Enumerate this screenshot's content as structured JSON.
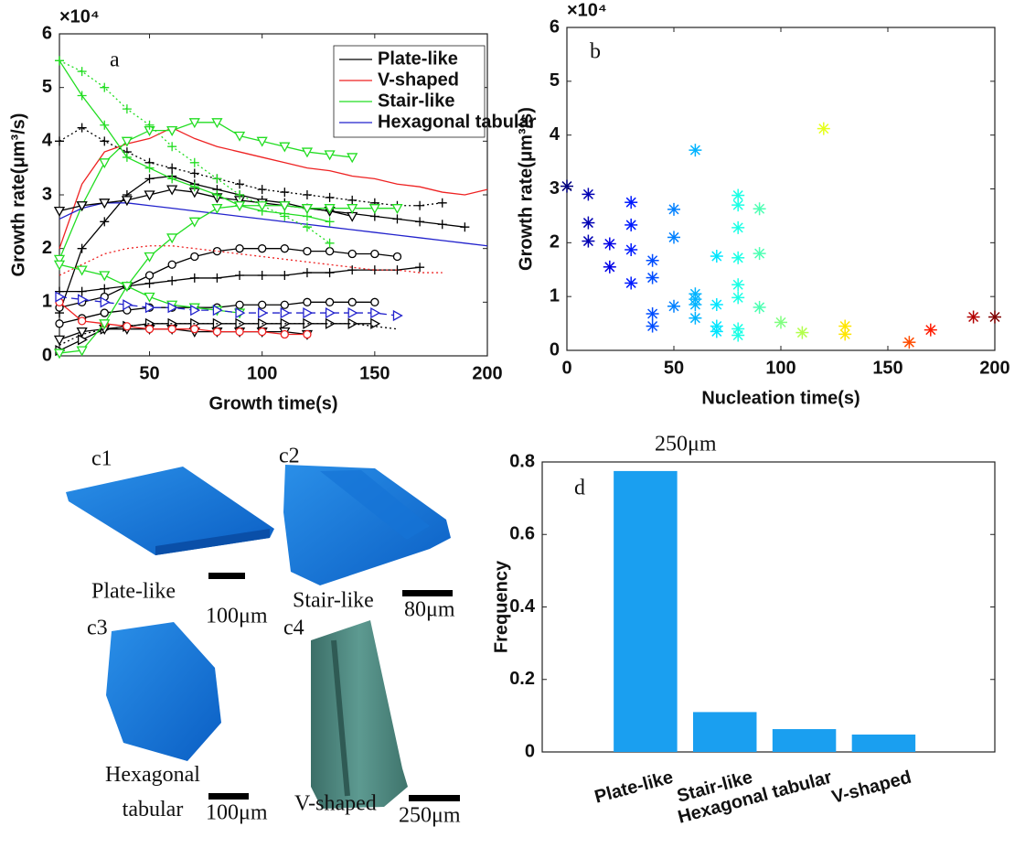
{
  "chart_data": [
    {
      "type": "line",
      "label": "a",
      "y_multiplier": "×10⁴",
      "xlabel": "Growth time(s)",
      "ylabel": "Growth rate(μm³/s)",
      "x": [
        10,
        20,
        30,
        40,
        50,
        60,
        70,
        80,
        90,
        100,
        110,
        120,
        130,
        140,
        150,
        160,
        170,
        180,
        190,
        200
      ],
      "xlim": [
        10,
        200
      ],
      "xticks": [
        50,
        100,
        150,
        200
      ],
      "ylim": [
        0,
        6
      ],
      "yticks": [
        0,
        1,
        2,
        3,
        4,
        5,
        6
      ],
      "legend": "upper-right",
      "series": [
        {
          "name": "Plate-like",
          "color": "#000000",
          "linestyle": "solid",
          "marker": "plus",
          "values": [
            0.8,
            2.0,
            2.5,
            3.0,
            3.3,
            3.35,
            3.2,
            3.1,
            3.0,
            2.9,
            2.85,
            2.75,
            2.7,
            2.65,
            2.6,
            2.55,
            2.5,
            2.45,
            2.4,
            null
          ]
        },
        {
          "name": "V-shaped",
          "color": "#ee2222",
          "linestyle": "solid",
          "marker": "none",
          "values": [
            2.0,
            3.2,
            3.8,
            3.95,
            4.05,
            4.25,
            4.05,
            3.9,
            3.8,
            3.7,
            3.6,
            3.5,
            3.45,
            3.35,
            3.3,
            3.2,
            3.15,
            3.05,
            3.0,
            3.1
          ]
        },
        {
          "name": "Stair-like",
          "color": "#22dd22",
          "linestyle": "solid",
          "marker": "triangle-down",
          "values": [
            1.8,
            2.8,
            3.6,
            4.0,
            4.2,
            4.2,
            4.35,
            4.35,
            4.1,
            4.0,
            3.9,
            3.8,
            3.75,
            3.7,
            null,
            null,
            null,
            null,
            null,
            null
          ]
        },
        {
          "name": "Hexagonal tabular",
          "color": "#2222cc",
          "linestyle": "solid",
          "marker": "none",
          "values": [
            2.55,
            2.75,
            2.85,
            2.85,
            2.8,
            2.75,
            2.7,
            2.65,
            2.6,
            2.55,
            2.5,
            2.45,
            2.4,
            2.35,
            2.3,
            2.25,
            2.2,
            2.15,
            2.1,
            2.05
          ]
        },
        {
          "color": "#000000",
          "linestyle": "dotted",
          "marker": "plus",
          "values": [
            4.0,
            4.25,
            4.0,
            3.8,
            3.6,
            3.5,
            3.4,
            3.3,
            3.2,
            3.1,
            3.05,
            3.0,
            2.95,
            2.9,
            2.85,
            2.8,
            2.8,
            2.85,
            null,
            null
          ]
        },
        {
          "color": "#000000",
          "linestyle": "solid",
          "marker": "triangle-down",
          "values": [
            2.7,
            2.8,
            2.85,
            2.9,
            3.0,
            3.1,
            3.05,
            2.95,
            2.9,
            2.85,
            2.8,
            2.75,
            2.7,
            2.6,
            null,
            null,
            null,
            null,
            null,
            null
          ]
        },
        {
          "color": "#000000",
          "linestyle": "solid",
          "marker": "circle",
          "values": [
            0.9,
            1.0,
            1.1,
            1.3,
            1.5,
            1.7,
            1.85,
            1.95,
            2.0,
            2.0,
            2.0,
            1.95,
            1.95,
            1.9,
            1.9,
            1.85,
            null,
            null,
            null,
            null
          ]
        },
        {
          "color": "#000000",
          "linestyle": "solid",
          "marker": "plus",
          "values": [
            1.2,
            1.2,
            1.25,
            1.3,
            1.35,
            1.4,
            1.45,
            1.45,
            1.5,
            1.5,
            1.5,
            1.55,
            1.55,
            1.6,
            1.6,
            1.6,
            1.65,
            null,
            null,
            null
          ]
        },
        {
          "color": "#000000",
          "linestyle": "solid",
          "marker": "circle",
          "values": [
            0.6,
            0.7,
            0.8,
            0.85,
            0.9,
            0.9,
            0.9,
            0.9,
            0.95,
            0.95,
            0.95,
            1.0,
            1.0,
            1.0,
            1.0,
            null,
            null,
            null,
            null,
            null
          ]
        },
        {
          "color": "#000000",
          "linestyle": "solid",
          "marker": "triangle-right",
          "values": [
            0.1,
            0.3,
            0.5,
            0.55,
            0.6,
            0.6,
            0.6,
            0.6,
            0.6,
            0.6,
            0.6,
            0.6,
            0.6,
            0.6,
            0.6,
            null,
            null,
            null,
            null,
            null
          ]
        },
        {
          "color": "#000000",
          "linestyle": "solid",
          "marker": "triangle-down",
          "values": [
            0.3,
            0.45,
            0.5,
            0.5,
            0.5,
            0.5,
            0.45,
            0.45,
            0.45,
            0.45,
            0.45,
            0.4,
            null,
            null,
            null,
            null,
            null,
            null,
            null,
            null
          ]
        },
        {
          "color": "#000000",
          "linestyle": "dotted",
          "marker": "none",
          "values": [
            0.2,
            0.4,
            0.5,
            0.55,
            0.6,
            0.6,
            0.6,
            0.6,
            0.6,
            0.6,
            0.6,
            0.6,
            0.6,
            0.6,
            0.55,
            0.5,
            null,
            null,
            null,
            null
          ]
        },
        {
          "color": "#ee2222",
          "linestyle": "solid",
          "marker": "circle",
          "values": [
            1.0,
            0.65,
            0.6,
            0.55,
            0.5,
            0.5,
            0.5,
            0.45,
            0.45,
            0.45,
            0.4,
            0.4,
            null,
            null,
            null,
            null,
            null,
            null,
            null,
            null
          ]
        },
        {
          "color": "#ee2222",
          "linestyle": "dotted",
          "marker": "none",
          "values": [
            1.5,
            1.7,
            1.9,
            2.0,
            2.05,
            2.05,
            2.0,
            1.95,
            1.9,
            1.85,
            1.8,
            1.75,
            1.7,
            1.65,
            1.6,
            1.6,
            1.55,
            1.55,
            null,
            null
          ]
        },
        {
          "color": "#22dd22",
          "linestyle": "solid",
          "marker": "plus",
          "values": [
            5.5,
            4.85,
            4.3,
            3.7,
            3.5,
            3.3,
            3.15,
            3.0,
            2.8,
            2.7,
            2.65,
            2.6,
            2.5,
            null,
            null,
            null,
            null,
            null,
            null,
            null
          ]
        },
        {
          "color": "#22dd22",
          "linestyle": "dotted",
          "marker": "plus",
          "values": [
            5.5,
            5.3,
            5.0,
            4.6,
            4.3,
            3.9,
            3.6,
            3.3,
            3.0,
            2.8,
            2.6,
            2.4,
            2.1,
            null,
            null,
            null,
            null,
            null,
            null,
            null
          ]
        },
        {
          "color": "#22dd22",
          "linestyle": "solid",
          "marker": "triangle-down",
          "values": [
            0.05,
            0.1,
            0.6,
            1.3,
            1.85,
            2.2,
            2.5,
            2.75,
            2.8,
            2.8,
            2.8,
            2.75,
            2.75,
            2.75,
            2.75,
            2.75,
            null,
            null,
            null,
            null
          ]
        },
        {
          "color": "#22dd22",
          "linestyle": "solid",
          "marker": "triangle-down",
          "values": [
            1.7,
            1.6,
            1.5,
            1.3,
            1.1,
            0.95,
            0.9,
            0.85,
            0.8,
            null,
            null,
            null,
            null,
            null,
            null,
            null,
            null,
            null,
            null,
            null
          ]
        },
        {
          "color": "#2222cc",
          "linestyle": "dashed",
          "marker": "triangle-right",
          "values": [
            1.1,
            1.05,
            1.0,
            0.95,
            0.9,
            0.9,
            0.85,
            0.85,
            0.8,
            0.8,
            0.8,
            0.8,
            0.8,
            0.8,
            0.8,
            0.75,
            null,
            null,
            null,
            null
          ]
        }
      ]
    },
    {
      "type": "scatter",
      "label": "b",
      "y_multiplier": "×10⁴",
      "xlabel": "Nucleation time(s)",
      "ylabel": "Growth rate(μm³/s)",
      "xlim": [
        0,
        200
      ],
      "xticks": [
        0,
        50,
        100,
        150,
        200
      ],
      "ylim": [
        0,
        6
      ],
      "yticks": [
        0,
        1,
        2,
        3,
        4,
        5,
        6
      ],
      "marker": "asterisk",
      "colormap": "jet",
      "x": [
        0,
        10,
        10,
        10,
        20,
        20,
        30,
        30,
        30,
        30,
        40,
        40,
        40,
        40,
        50,
        50,
        50,
        60,
        60,
        60,
        60,
        60,
        70,
        70,
        70,
        70,
        80,
        80,
        80,
        80,
        80,
        80,
        80,
        80,
        90,
        90,
        90,
        100,
        110,
        120,
        130,
        130,
        160,
        170,
        190,
        200
      ],
      "values": [
        3.05,
        2.9,
        2.37,
        2.03,
        1.98,
        1.55,
        2.75,
        2.33,
        1.87,
        1.25,
        1.67,
        1.35,
        0.68,
        0.45,
        2.62,
        2.1,
        0.82,
        3.72,
        1.05,
        0.95,
        0.85,
        0.6,
        1.75,
        0.85,
        0.45,
        0.35,
        2.88,
        2.7,
        2.28,
        1.72,
        1.22,
        0.98,
        0.4,
        0.28,
        2.63,
        1.8,
        0.8,
        0.52,
        0.33,
        4.12,
        0.45,
        0.3,
        0.15,
        0.38,
        0.62,
        0.62
      ]
    },
    {
      "type": "bar",
      "label": "d",
      "ylabel": "Frequency",
      "color": "#1a9ff0",
      "categories": [
        "Plate-like",
        "Stair-like",
        "Hexagonal tabular",
        "V-shaped"
      ],
      "values": [
        0.775,
        0.11,
        0.063,
        0.048
      ],
      "ylim": [
        0,
        0.8
      ],
      "yticks": [
        0,
        0.2,
        0.4,
        0.6,
        0.8
      ]
    }
  ],
  "images": {
    "items": [
      {
        "label": "c1",
        "name": "Plate-like",
        "scale": "100μm"
      },
      {
        "label": "c2",
        "name": "Stair-like",
        "scale": "80μm"
      },
      {
        "label": "c3",
        "name": "Hexagonal tabular",
        "scale": "100μm"
      },
      {
        "label": "c4",
        "name": "V-shaped",
        "scale": "250μm"
      }
    ],
    "stray_label": "250μm"
  }
}
